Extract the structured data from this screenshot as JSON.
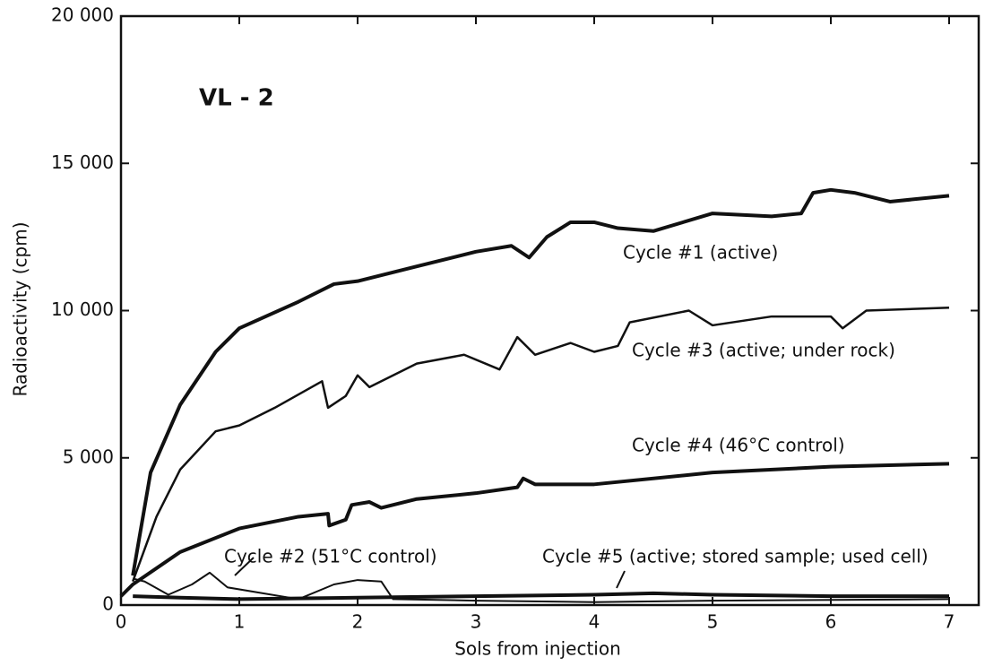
{
  "chart_data": {
    "type": "line",
    "annotation": "VL - 2",
    "xlabel": "Sols from injection",
    "ylabel": "Radioactivity  (cpm)",
    "xlim": [
      0,
      7.25
    ],
    "ylim": [
      0,
      20000
    ],
    "xticks": [
      0,
      1,
      2,
      3,
      4,
      5,
      6,
      7
    ],
    "yticks": [
      0,
      {
        "value": 5000,
        "label": "5 000"
      },
      {
        "value": 10000,
        "label": "10 000"
      },
      {
        "value": 15000,
        "label": "15 000"
      },
      {
        "value": 20000,
        "label": "20 000"
      }
    ],
    "series": [
      {
        "name": "Cycle #1 (active)",
        "color": "#111111",
        "x": [
          0.1,
          0.25,
          0.5,
          0.8,
          1,
          1.5,
          1.8,
          2,
          2.5,
          3,
          3.3,
          3.45,
          3.6,
          3.8,
          4,
          4.2,
          4.5,
          5,
          5.5,
          5.75,
          5.85,
          6,
          6.2,
          6.5,
          7
        ],
        "values": [
          1000,
          4500,
          6800,
          8600,
          9400,
          10300,
          10900,
          11000,
          11500,
          12000,
          12200,
          11800,
          12500,
          13000,
          13000,
          12800,
          12700,
          13300,
          13200,
          13300,
          14000,
          14100,
          14000,
          13700,
          13900
        ]
      },
      {
        "name": "Cycle #3 (active; under rock)",
        "color": "#111111",
        "x": [
          0.1,
          0.3,
          0.5,
          0.8,
          1,
          1.3,
          1.7,
          1.75,
          1.9,
          2,
          2.1,
          2.5,
          2.9,
          3.2,
          3.35,
          3.5,
          3.8,
          4,
          4.2,
          4.3,
          4.8,
          5,
          5.5,
          6,
          6.1,
          6.3,
          7
        ],
        "values": [
          800,
          3000,
          4600,
          5900,
          6100,
          6700,
          7600,
          6700,
          7100,
          7800,
          7400,
          8200,
          8500,
          8000,
          9100,
          8500,
          8900,
          8600,
          8800,
          9600,
          10000,
          9500,
          9800,
          9800,
          9400,
          10000,
          10100
        ]
      },
      {
        "name": "Cycle #4 (46°C control)",
        "color": "#111111",
        "x": [
          0,
          0.1,
          0.5,
          1,
          1.5,
          1.75,
          1.76,
          1.9,
          1.95,
          2.1,
          2.2,
          2.5,
          3,
          3.35,
          3.4,
          3.5,
          4,
          5,
          6,
          7
        ],
        "values": [
          300,
          700,
          1800,
          2600,
          3000,
          3100,
          2700,
          2900,
          3400,
          3500,
          3300,
          3600,
          3800,
          4000,
          4300,
          4100,
          4100,
          4500,
          4700,
          4800
        ]
      },
      {
        "name": "Cycle #2 (51°C control)",
        "color": "#111111",
        "x": [
          0.1,
          0.2,
          0.4,
          0.6,
          0.75,
          0.9,
          1.2,
          1.5,
          1.8,
          2,
          2.2,
          2.3,
          3,
          4,
          5,
          7
        ],
        "values": [
          900,
          800,
          350,
          700,
          1100,
          600,
          400,
          200,
          700,
          850,
          800,
          200,
          150,
          100,
          150,
          200
        ]
      },
      {
        "name": "Cycle #5 (active; stored sample; used cell)",
        "color": "#111111",
        "x": [
          0.1,
          0.5,
          1,
          2,
          3,
          4,
          4.5,
          5,
          6,
          7
        ],
        "values": [
          300,
          250,
          200,
          250,
          300,
          350,
          400,
          350,
          300,
          300
        ]
      }
    ]
  }
}
